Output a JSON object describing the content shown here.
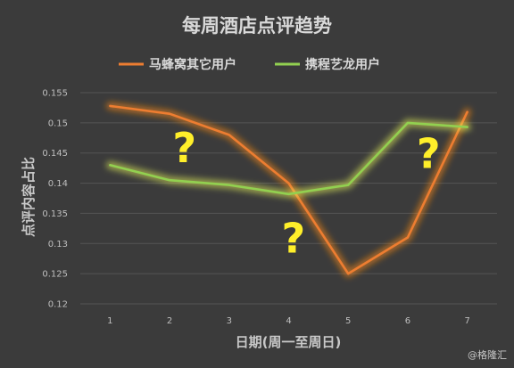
{
  "chart_data": {
    "type": "line",
    "title": "每周酒店点评趋势",
    "xlabel": "日期(周一至周日)",
    "ylabel": "点评内容占比",
    "x": [
      1,
      2,
      3,
      4,
      5,
      6,
      7
    ],
    "xticks": [
      "1",
      "2",
      "3",
      "4",
      "5",
      "6",
      "7"
    ],
    "ylim": [
      0.12,
      0.155
    ],
    "yticks": [
      "0.12",
      "0.125",
      "0.13",
      "0.135",
      "0.14",
      "0.145",
      "0.15",
      "0.155"
    ],
    "grid": true,
    "legend_position": "top",
    "series": [
      {
        "name": "马蜂窝其它用户",
        "color": "#ed7d31",
        "glow": "#ff8a1a",
        "values": [
          0.1528,
          0.1515,
          0.148,
          0.14,
          0.125,
          0.131,
          0.1518
        ]
      },
      {
        "name": "携程艺龙用户",
        "color": "#92d050",
        "glow": "#e6f25a",
        "values": [
          0.143,
          0.1405,
          0.1397,
          0.1382,
          0.1397,
          0.15,
          0.1493
        ]
      }
    ],
    "annotations": [
      {
        "text": "?",
        "x": 2.25,
        "y": 0.1435
      },
      {
        "text": "?",
        "x": 4.08,
        "y": 0.1285
      },
      {
        "text": "?",
        "x": 6.35,
        "y": 0.1425
      }
    ]
  },
  "watermark": "@格隆汇"
}
